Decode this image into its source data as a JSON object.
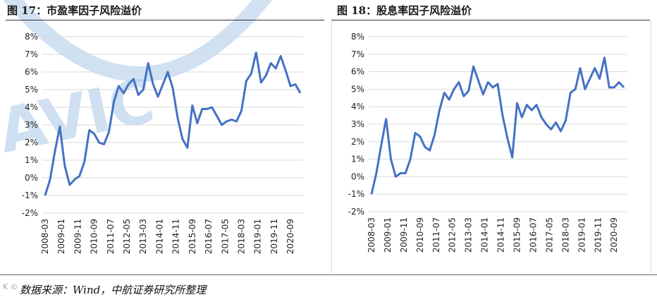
{
  "source_note": "数据来源：Wind，中航证券研究所整理",
  "watermark_text": "AVIC",
  "corner_text": "K ©",
  "colors": {
    "line": "#4472c4",
    "grid": "#d9d9d9",
    "watermark": "#a9c8e8"
  },
  "chart_data": [
    {
      "type": "line",
      "title": "图 17：市盈率因子风险溢价",
      "xlabel": "",
      "ylabel": "",
      "ylim": [
        -2,
        8
      ],
      "y_ticks": [
        "-2%",
        "-1%",
        "0%",
        "1%",
        "2%",
        "3%",
        "4%",
        "5%",
        "6%",
        "7%",
        "8%"
      ],
      "y_tick_values": [
        -2,
        -1,
        0,
        1,
        2,
        3,
        4,
        5,
        6,
        7,
        8
      ],
      "x_ticks": [
        "2008-03",
        "2009-01",
        "2009-11",
        "2010-09",
        "2011-07",
        "2012-05",
        "2013-03",
        "2014-01",
        "2014-11",
        "2015-09",
        "2016-07",
        "2017-05",
        "2018-03",
        "2019-01",
        "2019-11",
        "2020-09"
      ],
      "grid": true,
      "series": [
        {
          "values": [
            -1.0,
            -0.1,
            1.5,
            2.9,
            0.7,
            -0.4,
            -0.1,
            0.1,
            0.9,
            2.7,
            2.5,
            2.0,
            1.9,
            2.6,
            4.3,
            5.2,
            4.8,
            5.3,
            5.6,
            4.7,
            5.0,
            6.5,
            5.3,
            4.6,
            5.3,
            6.0,
            5.1,
            3.4,
            2.2,
            1.7,
            4.1,
            3.1,
            3.9,
            3.9,
            4.0,
            3.5,
            3.0,
            3.2,
            3.3,
            3.2,
            3.8,
            5.5,
            5.9,
            7.1,
            5.4,
            5.8,
            6.5,
            6.2,
            6.9,
            6.1,
            5.2,
            5.3,
            4.8
          ]
        }
      ]
    },
    {
      "type": "line",
      "title": "图 18：股息率因子风险溢价",
      "xlabel": "",
      "ylabel": "",
      "ylim": [
        -2,
        8
      ],
      "y_ticks": [
        "-2%",
        "-1%",
        "0%",
        "1%",
        "2%",
        "3%",
        "4%",
        "5%",
        "6%",
        "7%",
        "8%"
      ],
      "y_tick_values": [
        -2,
        -1,
        0,
        1,
        2,
        3,
        4,
        5,
        6,
        7,
        8
      ],
      "x_ticks": [
        "2008-03",
        "2009-01",
        "2009-11",
        "2010-09",
        "2011-07",
        "2012-05",
        "2013-03",
        "2014-01",
        "2014-11",
        "2015-09",
        "2016-07",
        "2017-05",
        "2018-03",
        "2019-01",
        "2019-11",
        "2020-09"
      ],
      "grid": true,
      "series": [
        {
          "values": [
            -1.0,
            0.2,
            1.8,
            3.3,
            1.0,
            0.0,
            0.2,
            0.2,
            1.0,
            2.5,
            2.3,
            1.7,
            1.5,
            2.4,
            3.8,
            4.8,
            4.4,
            5.0,
            5.4,
            4.6,
            4.9,
            6.3,
            5.5,
            4.7,
            5.4,
            5.1,
            5.3,
            3.5,
            2.2,
            1.1,
            4.2,
            3.4,
            4.1,
            3.8,
            4.1,
            3.4,
            3.0,
            2.7,
            3.1,
            2.6,
            3.2,
            4.8,
            5.0,
            6.2,
            5.0,
            5.6,
            6.2,
            5.6,
            6.8,
            5.1,
            5.1,
            5.4,
            5.1
          ]
        }
      ]
    }
  ]
}
